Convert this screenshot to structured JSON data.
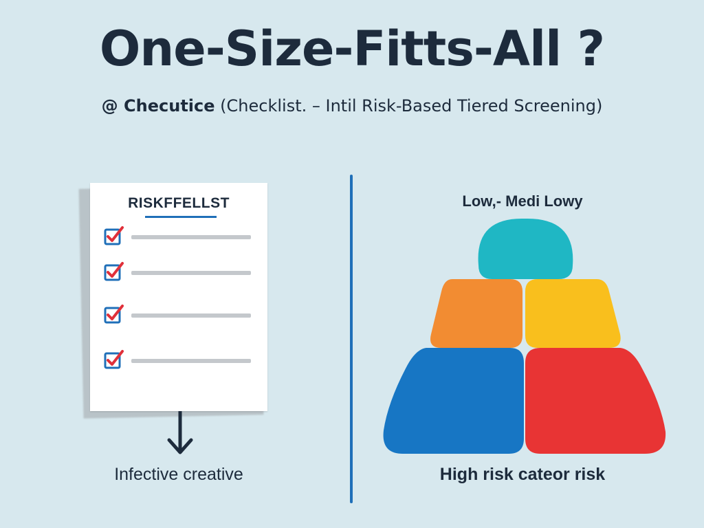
{
  "header": {
    "title": "One-Size-Fitts-All ?",
    "subtitle_brand": "@ Checutice",
    "subtitle_rest": " (Checklist. – Intil Risk-Based Tiered Screening)"
  },
  "checklist": {
    "title": "RISKFFELLST",
    "caption": "Infective creative"
  },
  "pyramid": {
    "top_label": "Low,- Medi Lowy",
    "caption": "High risk cateor risk",
    "colors": {
      "top": "#1fb7c4",
      "middle_left": "#f28c32",
      "middle_right": "#f9bf1d",
      "bottom_left": "#1776c4",
      "bottom_right": "#e83434"
    }
  },
  "icons": {
    "check": "checkbox-checked-icon",
    "arrow": "arrow-down-icon"
  },
  "colors": {
    "background": "#d7e8ee",
    "accent_blue": "#1f6fb8",
    "text_dark": "#1d2b3c",
    "check_red": "#e0303a"
  }
}
